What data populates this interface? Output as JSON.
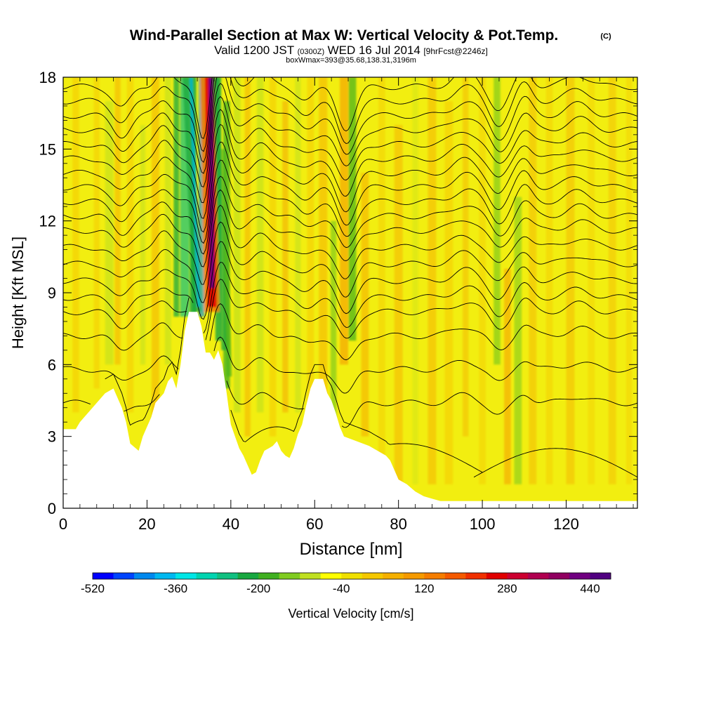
{
  "header": {
    "title": "Wind-Parallel Section at Max W: Vertical Velocity & Pot.Temp.",
    "title_mark": "(C)",
    "valid_main": "Valid 1200 JST",
    "valid_z": "(0300Z)",
    "valid_date": "WED 16 Jul 2014",
    "valid_fcst": "[9hrFcst@2246z]",
    "box_line": "boxWmax=393@35.68,138.31,3196m"
  },
  "chart_data": {
    "type": "heatmap",
    "xlabel": "Distance [nm]",
    "ylabel": "Height [Kft MSL]",
    "xlim": [
      0,
      137
    ],
    "ylim": [
      0,
      18
    ],
    "x_ticks": [
      "0",
      "20",
      "40",
      "60",
      "80",
      "100",
      "120"
    ],
    "y_ticks": [
      "0",
      "3",
      "6",
      "9",
      "12",
      "15",
      "18"
    ],
    "colorbar": {
      "label": "Vertical Velocity [cm/s]",
      "tick_labels": [
        "-520",
        "-360",
        "-200",
        "-40",
        "120",
        "280",
        "440"
      ],
      "colors": [
        "#0000ff",
        "#0044ff",
        "#0088ee",
        "#00b8f0",
        "#00e6e6",
        "#00d4b0",
        "#10c080",
        "#18a840",
        "#40b020",
        "#80cc20",
        "#c0e020",
        "#ffff00",
        "#f0e000",
        "#f5c800",
        "#f5b000",
        "#f59a00",
        "#f57d00",
        "#f55a00",
        "#f03000",
        "#e00000",
        "#cc0030",
        "#b00050",
        "#900060",
        "#700080",
        "#500080"
      ]
    },
    "terrain_nm_kft": [
      [
        0,
        3.3
      ],
      [
        3,
        3.3
      ],
      [
        4,
        3.6
      ],
      [
        6,
        4.0
      ],
      [
        8,
        4.4
      ],
      [
        10,
        4.8
      ],
      [
        12,
        5.0
      ],
      [
        13,
        4.6
      ],
      [
        14,
        4.2
      ],
      [
        15,
        3.6
      ],
      [
        16,
        2.7
      ],
      [
        18,
        2.4
      ],
      [
        19,
        3.0
      ],
      [
        20,
        3.4
      ],
      [
        21,
        3.8
      ],
      [
        22,
        4.4
      ],
      [
        24,
        4.8
      ],
      [
        25,
        5.3
      ],
      [
        26,
        5.5
      ],
      [
        27,
        5.0
      ],
      [
        28,
        6.0
      ],
      [
        29,
        7.4
      ],
      [
        30,
        8.2
      ],
      [
        32,
        8.2
      ],
      [
        33,
        7.6
      ],
      [
        34,
        6.5
      ],
      [
        35,
        6.5
      ],
      [
        36,
        6.2
      ],
      [
        37,
        6.6
      ],
      [
        38,
        6.0
      ],
      [
        39,
        4.8
      ],
      [
        40,
        3.5
      ],
      [
        41,
        3.0
      ],
      [
        42,
        2.5
      ],
      [
        43,
        2.2
      ],
      [
        44,
        1.8
      ],
      [
        45,
        1.4
      ],
      [
        46,
        1.5
      ],
      [
        47,
        2.0
      ],
      [
        48,
        2.4
      ],
      [
        49,
        2.5
      ],
      [
        50,
        2.6
      ],
      [
        51,
        2.8
      ],
      [
        52,
        2.4
      ],
      [
        53,
        2.2
      ],
      [
        54,
        2.1
      ],
      [
        55,
        2.5
      ],
      [
        56,
        3.1
      ],
      [
        57,
        3.5
      ],
      [
        58,
        4.3
      ],
      [
        59,
        5.0
      ],
      [
        60,
        5.4
      ],
      [
        62,
        5.4
      ],
      [
        63,
        4.8
      ],
      [
        64,
        4.5
      ],
      [
        65,
        4.0
      ],
      [
        66,
        3.4
      ],
      [
        67,
        3.0
      ],
      [
        70,
        2.8
      ],
      [
        73,
        2.6
      ],
      [
        75,
        2.4
      ],
      [
        77,
        2.2
      ],
      [
        78,
        2.0
      ],
      [
        79,
        1.6
      ],
      [
        80,
        1.2
      ],
      [
        82,
        1.0
      ],
      [
        84,
        0.7
      ],
      [
        86,
        0.5
      ],
      [
        88,
        0.4
      ],
      [
        90,
        0.3
      ],
      [
        137,
        0.3
      ]
    ],
    "contour_base_kft": [
      4.4,
      5.8,
      7.2,
      8.2,
      8.8,
      9.5,
      10.2,
      10.9,
      11.6,
      12.2,
      12.8,
      13.4,
      14.0,
      14.6,
      15.2,
      15.8,
      16.4,
      17.0,
      17.6
    ],
    "updraft_core_nm": 35.5,
    "max_w_cm_s": 393
  }
}
